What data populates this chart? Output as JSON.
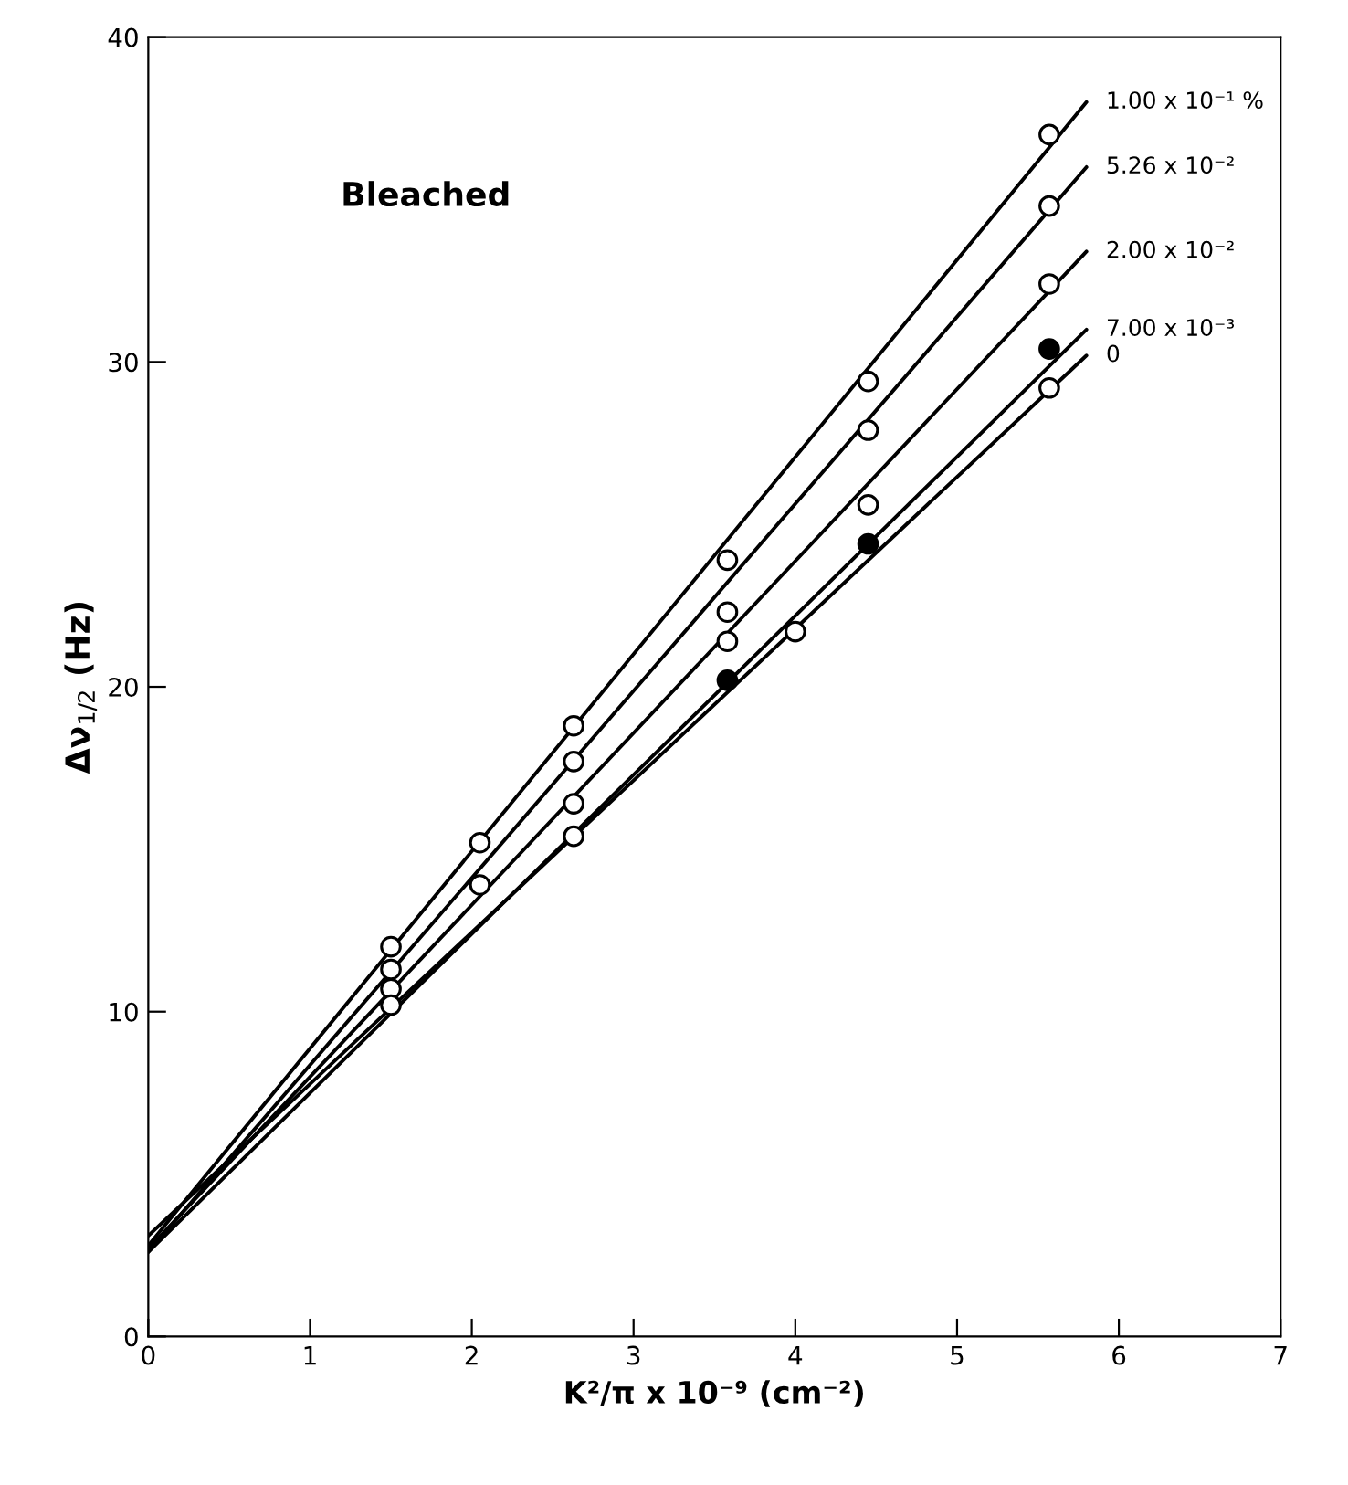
{
  "chart_data": {
    "type": "scatter",
    "xlabel": "K²/π x 10⁻⁹ (cm⁻²)",
    "ylabel": "Δν$_{1/2}$ (Hz)",
    "annotations": [
      "Bleached"
    ],
    "xlim": [
      0,
      7
    ],
    "ylim": [
      0,
      40
    ],
    "xticks": [
      0,
      1,
      2,
      3,
      4,
      5,
      6,
      7
    ],
    "yticks": [
      0,
      10,
      20,
      30,
      40
    ],
    "grid": false,
    "legend": false,
    "series": [
      {
        "type": "line",
        "marker": "none",
        "name": "1.00 x 10⁻¹ %",
        "color": "#000000",
        "x": [
          0,
          5.8
        ],
        "values": [
          2.8,
          38.0
        ]
      },
      {
        "type": "line",
        "marker": "none",
        "name": "5.26 x 10⁻²",
        "color": "#000000",
        "x": [
          0,
          5.8
        ],
        "values": [
          2.6,
          36.0
        ]
      },
      {
        "type": "line",
        "marker": "none",
        "name": "2.00 x 10⁻²",
        "color": "#000000",
        "x": [
          0,
          5.8
        ],
        "values": [
          2.7,
          33.4
        ]
      },
      {
        "type": "line",
        "marker": "none",
        "name": "7.00 x 10⁻³",
        "color": "#000000",
        "x": [
          0,
          5.8
        ],
        "values": [
          2.6,
          31.0
        ]
      },
      {
        "type": "line",
        "marker": "none",
        "name": "0",
        "color": "#000000",
        "x": [
          0,
          5.8
        ],
        "values": [
          3.1,
          30.2
        ]
      },
      {
        "marker": "circle",
        "color": "#ffffff",
        "x": [
          1.5,
          2.05,
          2.63,
          3.58,
          4.45,
          5.57
        ],
        "values": [
          12.0,
          15.2,
          18.8,
          23.9,
          29.4,
          37.0
        ]
      },
      {
        "marker": "circle",
        "color": "#ffffff",
        "x": [
          1.5,
          2.05,
          2.63,
          3.58,
          4.45,
          5.57
        ],
        "values": [
          11.3,
          13.9,
          17.7,
          22.3,
          27.9,
          34.8
        ]
      },
      {
        "marker": "circle",
        "color": "#ffffff",
        "x": [
          1.5,
          2.63,
          3.58,
          4.45,
          5.57
        ],
        "values": [
          10.7,
          16.4,
          21.4,
          25.6,
          32.4
        ]
      },
      {
        "marker": "circle",
        "color": "#000000",
        "x": [
          3.58,
          4.45,
          5.57
        ],
        "values": [
          20.2,
          24.4,
          30.4
        ]
      },
      {
        "marker": "circle",
        "color": "#ffffff",
        "x": [
          1.5,
          2.63,
          4.0,
          5.57
        ],
        "values": [
          10.2,
          15.4,
          21.7,
          29.2
        ]
      }
    ]
  }
}
